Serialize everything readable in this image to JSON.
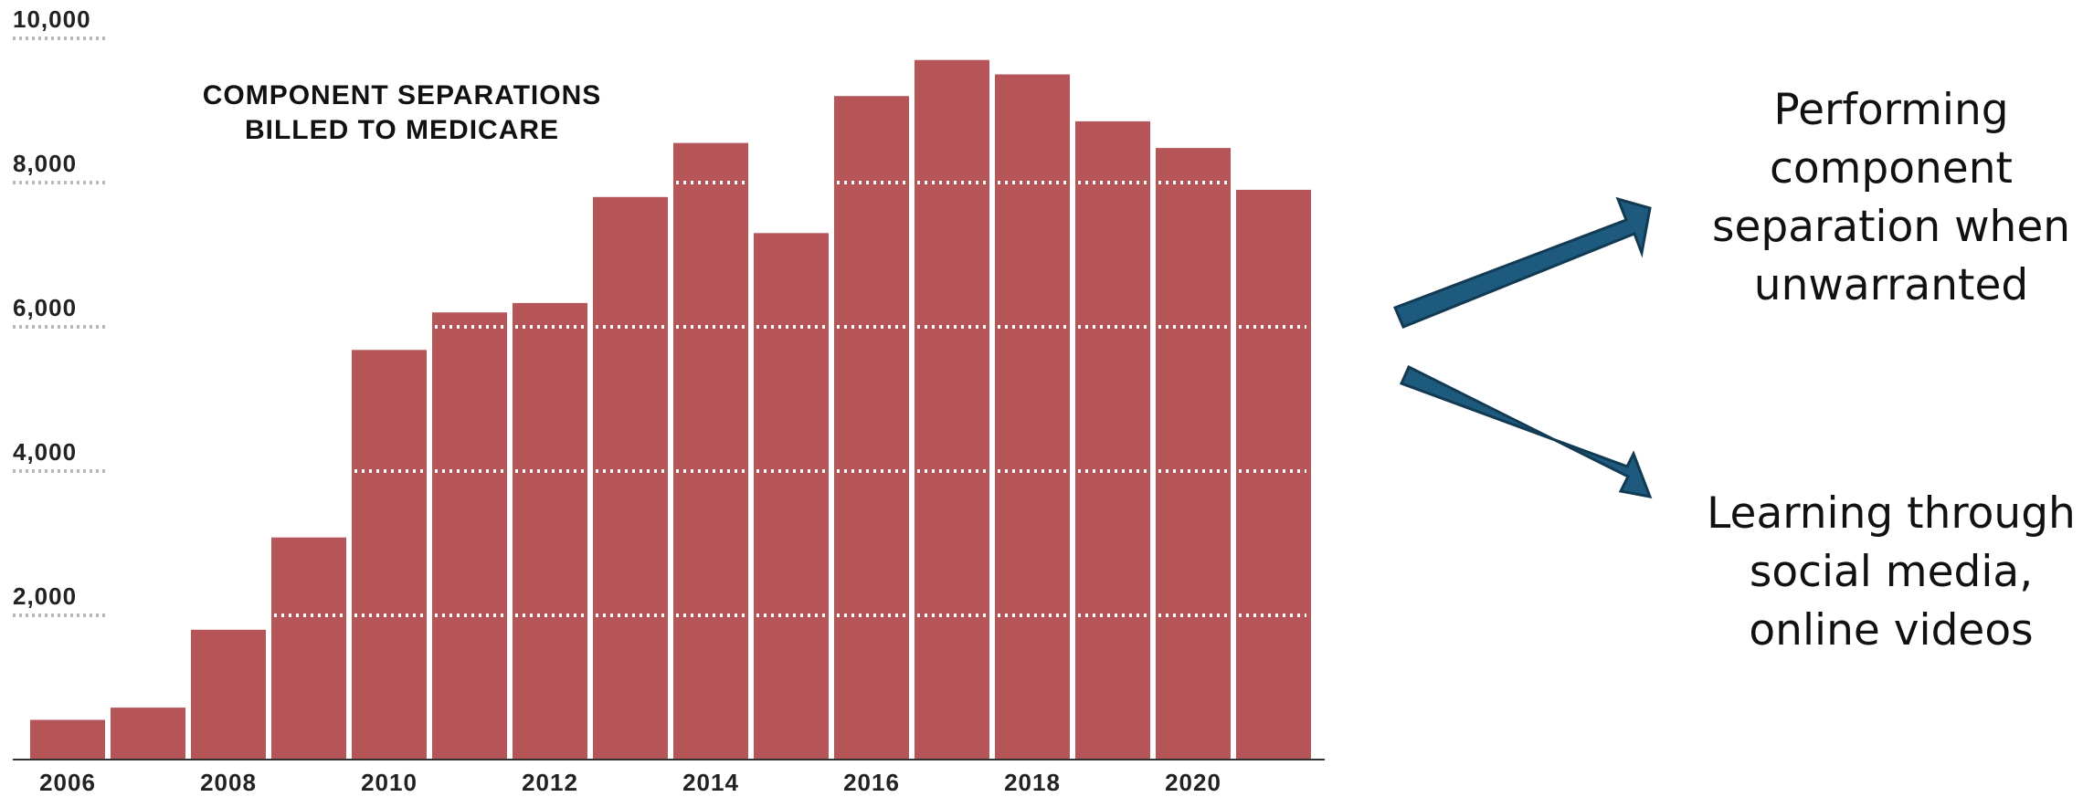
{
  "chart_data": {
    "type": "bar",
    "title_lines": [
      "COMPONENT SEPARATIONS",
      "BILLED TO MEDICARE"
    ],
    "categories": [
      "2006",
      "2007",
      "2008",
      "2009",
      "2010",
      "2011",
      "2012",
      "2013",
      "2014",
      "2015",
      "2016",
      "2017",
      "2018",
      "2019",
      "2020",
      "2021"
    ],
    "values": [
      550,
      720,
      1800,
      3080,
      5680,
      6200,
      6330,
      7800,
      8550,
      7300,
      9200,
      9700,
      9500,
      8850,
      8480,
      7900
    ],
    "x_tick_labels": [
      "2006",
      "",
      "2008",
      "",
      "2010",
      "",
      "2012",
      "",
      "2014",
      "",
      "2016",
      "",
      "2018",
      "",
      "2020",
      ""
    ],
    "y_ticks": [
      {
        "value": 2000,
        "label": "2,000"
      },
      {
        "value": 4000,
        "label": "4,000"
      },
      {
        "value": 6000,
        "label": "6,000"
      },
      {
        "value": 8000,
        "label": "8,000"
      },
      {
        "value": 10000,
        "label": "10,000"
      }
    ],
    "ylim": [
      0,
      10000
    ],
    "grid": "dotted horizontal",
    "bar_color": "#b55558",
    "xlabel": "",
    "ylabel": ""
  },
  "annotations": {
    "arrow_color": "#1d5a7e",
    "upper": {
      "lines": [
        "Performing",
        "component",
        "separation when",
        "unwarranted"
      ]
    },
    "lower": {
      "lines": [
        "Learning through",
        "social media,",
        "online videos"
      ]
    }
  }
}
